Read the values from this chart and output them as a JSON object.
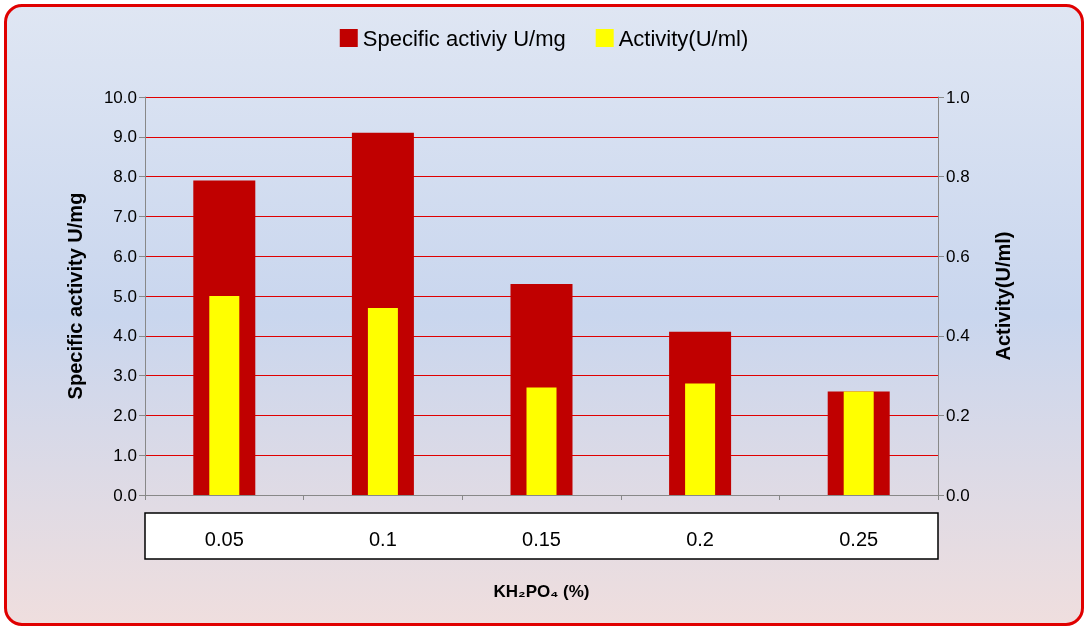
{
  "chart_data": {
    "type": "bar",
    "xlabel": "KH₂PO₄ (%)",
    "ylabel": "Specific activity U/mg",
    "y2label": "Activity(U/ml)",
    "categories": [
      "0.05",
      "0.1",
      "0.15",
      "0.2",
      "0.25"
    ],
    "series": [
      {
        "name": "Specific activiy U/mg",
        "color": "#c00000",
        "values": [
          7.9,
          9.1,
          5.3,
          4.1,
          2.6
        ]
      },
      {
        "name": "Activity(U/ml)",
        "color": "#ffff00",
        "axis": "y2",
        "values": [
          0.5,
          0.47,
          0.27,
          0.28,
          0.26
        ]
      }
    ],
    "ylim": [
      0,
      10
    ],
    "yticks": [
      {
        "value": 0,
        "label": "0.0"
      },
      {
        "value": 1,
        "label": "1.0"
      },
      {
        "value": 2,
        "label": "2.0"
      },
      {
        "value": 3,
        "label": "3.0"
      },
      {
        "value": 4,
        "label": "4.0"
      },
      {
        "value": 5,
        "label": "5.0"
      },
      {
        "value": 6,
        "label": "6.0"
      },
      {
        "value": 7,
        "label": "7.0"
      },
      {
        "value": 8,
        "label": "8.0"
      },
      {
        "value": 9,
        "label": "9.0"
      },
      {
        "value": 10,
        "label": "10.0"
      }
    ],
    "y2lim": [
      0,
      1
    ],
    "y2ticks": [
      {
        "value": 0,
        "label": "0.0"
      },
      0.2,
      0.4,
      0.6,
      0.8,
      {
        "value": 1,
        "label": "1.0"
      }
    ],
    "grid": "y",
    "legend": "top"
  }
}
